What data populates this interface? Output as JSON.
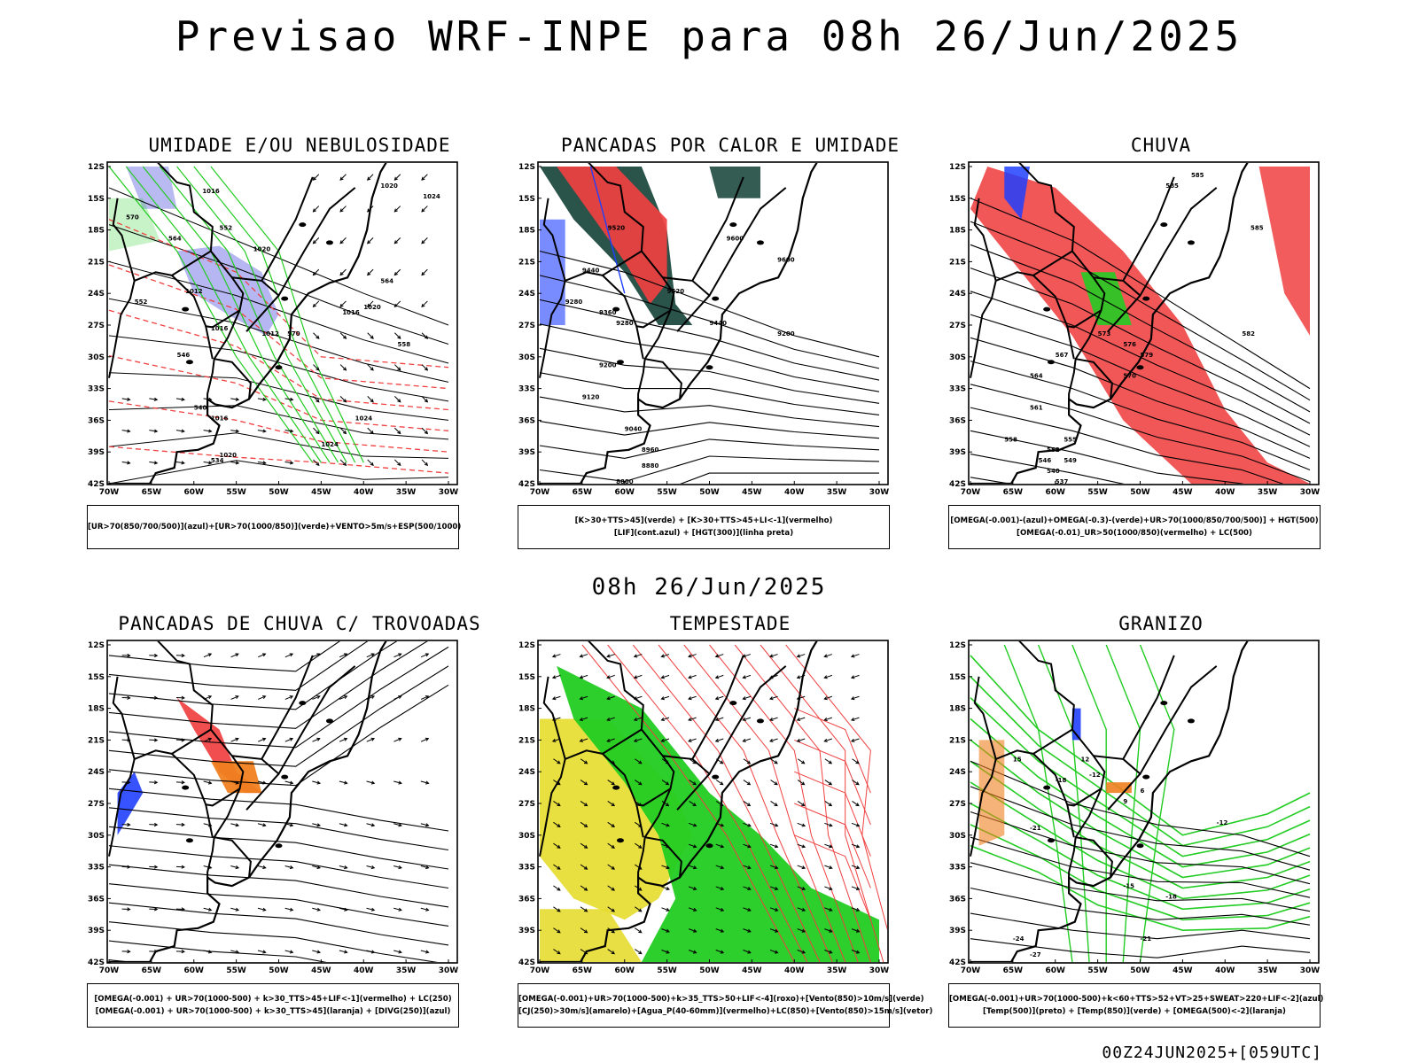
{
  "main_title": "Previsao WRF-INPE  para 08h 26/Jun/2025",
  "mid_date": "08h 26/Jun/2025",
  "footer_stamp": "00Z24JUN2025+[059UTC]",
  "axes": {
    "lat_labels": [
      "12S",
      "15S",
      "18S",
      "21S",
      "24S",
      "27S",
      "30S",
      "33S",
      "36S",
      "39S",
      "42S"
    ],
    "lon_labels": [
      "70W",
      "65W",
      "60W",
      "55W",
      "50W",
      "45W",
      "40W",
      "35W",
      "30W"
    ]
  },
  "colors": {
    "humidity_blue": "#a9a9f0",
    "green": "#22cc22",
    "red": "#f04040",
    "dark_teal": "#1f4a40",
    "yellow": "#e6dc30",
    "orange": "#f08020",
    "blue": "#2040ff"
  },
  "panels": [
    {
      "id": "umidade",
      "title": "UMIDADE E/OU NEBULOSIDADE",
      "legend": [
        "[UR>70(850/700/500)](azul)+[UR>70(1000/850)](verde)+VENTO>5m/s+ESP(500/1000)"
      ],
      "contour_labels": [
        "1016",
        "1020",
        "1024",
        "1012",
        "1016",
        "1020",
        "1024",
        "1012",
        "1016",
        "1020",
        "1024",
        "1020",
        "1016",
        "570",
        "570",
        "564",
        "564",
        "558",
        "552",
        "546",
        "540",
        "534",
        "552"
      ]
    },
    {
      "id": "pancadas-calor",
      "title": "PANCADAS POR CALOR E UMIDADE",
      "legend": [
        "[K>30+TTS>45](verde) + [K>30+TTS>45+LI<-1](vermelho)",
        "[LIF](cont.azul) + [HGT(300)](linha preta)"
      ],
      "contour_labels": [
        "9600",
        "9600",
        "9520",
        "9520",
        "9440",
        "9440",
        "9360",
        "9280",
        "9280",
        "9200",
        "9200",
        "9120",
        "9040",
        "8960",
        "8880",
        "8800"
      ]
    },
    {
      "id": "chuva",
      "title": "CHUVA",
      "legend": [
        "[OMEGA(-0.001)-(azul)+OMEGA(-0.3)-(verde)+UR>70(1000/850/700/500)] + HGT(500)",
        "[OMEGA(-0.01)_UR>50(1000/850)(vermelho) + LC(500)"
      ],
      "contour_labels": [
        "585",
        "585",
        "585",
        "582",
        "579",
        "576",
        "573",
        "570",
        "567",
        "564",
        "561",
        "558",
        "555",
        "552",
        "549",
        "546",
        "540",
        "537"
      ]
    },
    {
      "id": "trovoadas",
      "title": "PANCADAS DE CHUVA C/ TROVOADAS",
      "legend": [
        "[OMEGA(-0.001) + UR>70(1000-500) + k>30_TTS>45+LIF<-1](vermelho) + LC(250)",
        "[OMEGA(-0.001) + UR>70(1000-500) + k>30_TTS>45](laranja) + [DIVG(250)](azul)"
      ],
      "contour_labels": []
    },
    {
      "id": "tempestade",
      "title": "TEMPESTADE",
      "legend": [
        "[OMEGA(-0.001)+UR>70(1000-500)+k>35_TTS>50+LIF<-4](roxo)+[Vento(850)>10m/s](verde)",
        "[CJ(250)>30m/s](amarelo)+[Agua_P(40-60mm)](vermelho)+LC(850)+[Vento(850)>15m/s](vetor)"
      ],
      "contour_labels": []
    },
    {
      "id": "granizo",
      "title": "GRANIZO",
      "legend": [
        "[OMEGA(-0.001)+UR>70(1000-500)+k<60+TTS>52+VT>25+SWEAT>220+LIF<-2](azul)",
        "[Temp(500)](preto) + [Temp(850)](verde) + [OMEGA(500)<-2](laranja)"
      ],
      "contour_labels": [
        "-12",
        "-12",
        "-15",
        "-18",
        "-18",
        "-21",
        "-21",
        "-24",
        "-27",
        "15",
        "12",
        "9",
        "6"
      ]
    }
  ]
}
